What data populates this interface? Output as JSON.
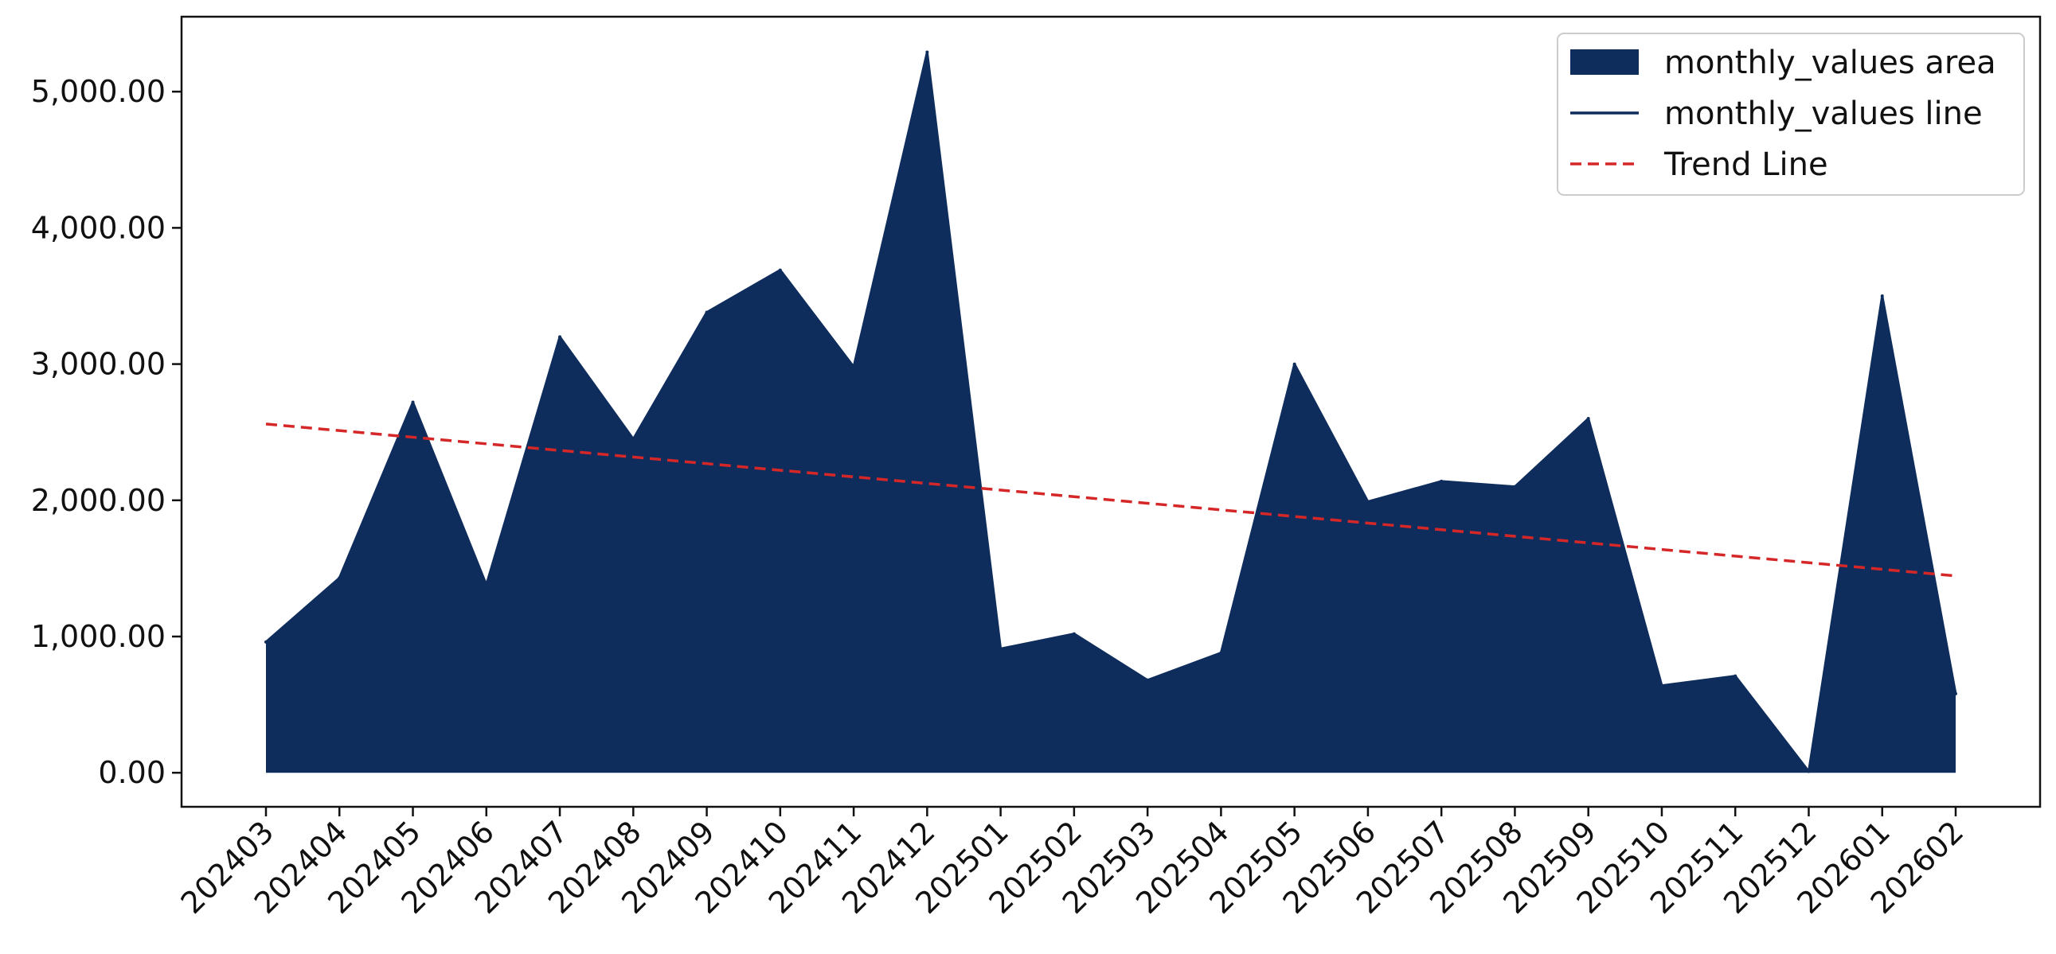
{
  "chart_data": {
    "type": "area",
    "title": "",
    "xlabel": "",
    "ylabel": "",
    "categories": [
      "202403",
      "202404",
      "202405",
      "202406",
      "202407",
      "202408",
      "202409",
      "202410",
      "202411",
      "202412",
      "202501",
      "202502",
      "202503",
      "202504",
      "202505",
      "202506",
      "202507",
      "202508",
      "202509",
      "202510",
      "202511",
      "202512",
      "202601",
      "202602"
    ],
    "series": [
      {
        "name": "monthly_values area",
        "kind": "area",
        "color": "#0f2d5c",
        "values": [
          960,
          1430,
          2720,
          1380,
          3200,
          2450,
          3380,
          3690,
          2980,
          5290,
          910,
          1020,
          680,
          880,
          3000,
          1990,
          2140,
          2100,
          2600,
          640,
          710,
          10,
          3500,
          580
        ]
      },
      {
        "name": "monthly_values line",
        "kind": "line",
        "color": "#0f2d5c",
        "values": [
          960,
          1430,
          2720,
          1380,
          3200,
          2450,
          3380,
          3690,
          2980,
          5290,
          910,
          1020,
          680,
          880,
          3000,
          1990,
          2140,
          2100,
          2600,
          640,
          710,
          10,
          3500,
          580
        ]
      },
      {
        "name": "Trend Line",
        "kind": "trend",
        "color": "#d62728",
        "style": "dashed",
        "start": 2560,
        "end": 1445
      }
    ],
    "ylim": [
      -250,
      5550
    ],
    "yticks": [
      0,
      1000,
      2000,
      3000,
      4000,
      5000
    ],
    "ytick_labels": [
      "0.00",
      "1,000.00",
      "2,000.00",
      "3,000.00",
      "4,000.00",
      "5,000.00"
    ],
    "grid": false,
    "legend_position": "top-right",
    "legend": [
      "monthly_values area",
      "monthly_values line",
      "Trend Line"
    ]
  }
}
